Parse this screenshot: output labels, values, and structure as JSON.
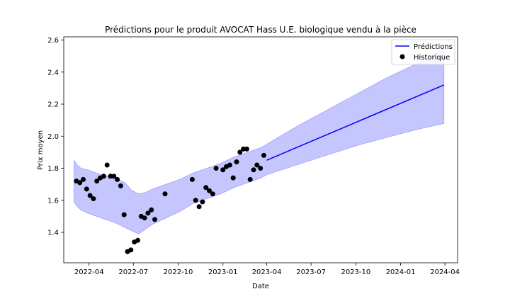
{
  "chart_data": {
    "type": "line",
    "title": "Prédictions pour le produit AVOCAT Hass U.E. biologique vendu à la pièce",
    "xlabel": "Date",
    "ylabel": "Prix moyen",
    "xlim": [
      "2022-02-08",
      "2024-04-27"
    ],
    "ylim": [
      1.21,
      2.62
    ],
    "x_ticks": [
      "2022-04-01",
      "2022-07-01",
      "2022-10-01",
      "2023-01-01",
      "2023-04-01",
      "2023-07-01",
      "2023-10-01",
      "2024-01-01",
      "2024-04-01"
    ],
    "x_tick_labels": [
      "2022-04",
      "2022-07",
      "2022-10",
      "2023-01",
      "2023-04",
      "2023-07",
      "2023-10",
      "2024-01",
      "2024-04"
    ],
    "y_ticks": [
      1.4,
      1.6,
      1.8,
      2.0,
      2.2,
      2.4,
      2.6
    ],
    "y_tick_labels": [
      "1.4",
      "1.6",
      "1.8",
      "2.0",
      "2.2",
      "2.4",
      "2.6"
    ],
    "grid": false,
    "legend_position": "top-right",
    "series": [
      {
        "name": "Prédictions",
        "kind": "line",
        "color": "#0000ff",
        "x": [
          "2023-04-01",
          "2024-03-30"
        ],
        "y": [
          1.85,
          2.32
        ]
      },
      {
        "name": "Historique",
        "kind": "scatter",
        "color": "#000000",
        "x": [
          "2022-03-06",
          "2022-03-13",
          "2022-03-20",
          "2022-03-27",
          "2022-04-03",
          "2022-04-10",
          "2022-04-17",
          "2022-04-24",
          "2022-05-01",
          "2022-05-08",
          "2022-05-15",
          "2022-05-22",
          "2022-05-29",
          "2022-06-05",
          "2022-06-12",
          "2022-06-19",
          "2022-06-26",
          "2022-07-03",
          "2022-07-10",
          "2022-07-17",
          "2022-07-24",
          "2022-07-31",
          "2022-08-07",
          "2022-08-14",
          "2022-09-04",
          "2022-10-30",
          "2022-11-06",
          "2022-11-13",
          "2022-11-20",
          "2022-11-27",
          "2022-12-04",
          "2022-12-11",
          "2022-12-18",
          "2023-01-01",
          "2023-01-08",
          "2023-01-15",
          "2023-01-22",
          "2023-01-29",
          "2023-02-05",
          "2023-02-12",
          "2023-02-19",
          "2023-02-26",
          "2023-03-05",
          "2023-03-12",
          "2023-03-19",
          "2023-03-26"
        ],
        "y": [
          1.72,
          1.71,
          1.73,
          1.67,
          1.63,
          1.61,
          1.72,
          1.74,
          1.75,
          1.82,
          1.75,
          1.75,
          1.73,
          1.69,
          1.51,
          1.28,
          1.29,
          1.34,
          1.35,
          1.5,
          1.49,
          1.52,
          1.54,
          1.48,
          1.64,
          1.73,
          1.6,
          1.56,
          1.59,
          1.68,
          1.66,
          1.64,
          1.8,
          1.79,
          1.81,
          1.82,
          1.74,
          1.84,
          1.9,
          1.92,
          1.92,
          1.73,
          1.79,
          1.82,
          1.8,
          1.88
        ]
      }
    ],
    "band": {
      "color": "#b3b3ff",
      "edge_color": "#8c8cff",
      "x": [
        "2022-03-01",
        "2022-03-08",
        "2022-03-15",
        "2022-03-29",
        "2022-04-26",
        "2022-05-24",
        "2022-06-14",
        "2022-06-28",
        "2022-07-12",
        "2022-07-26",
        "2022-08-09",
        "2022-09-06",
        "2022-10-04",
        "2022-11-01",
        "2022-11-29",
        "2022-12-27",
        "2023-01-24",
        "2023-02-21",
        "2023-03-21",
        "2023-04-01",
        "2023-06-01",
        "2023-08-01",
        "2023-10-01",
        "2023-12-01",
        "2024-02-01",
        "2024-03-30"
      ],
      "upper": [
        1.85,
        1.82,
        1.8,
        1.79,
        1.76,
        1.74,
        1.71,
        1.66,
        1.64,
        1.65,
        1.67,
        1.7,
        1.73,
        1.77,
        1.8,
        1.83,
        1.87,
        1.9,
        1.93,
        1.95,
        2.06,
        2.16,
        2.26,
        2.36,
        2.45,
        2.55
      ],
      "lower": [
        1.59,
        1.56,
        1.54,
        1.52,
        1.49,
        1.46,
        1.43,
        1.41,
        1.39,
        1.42,
        1.45,
        1.49,
        1.53,
        1.58,
        1.61,
        1.64,
        1.68,
        1.71,
        1.74,
        1.76,
        1.82,
        1.88,
        1.94,
        1.99,
        2.04,
        2.08
      ]
    }
  }
}
